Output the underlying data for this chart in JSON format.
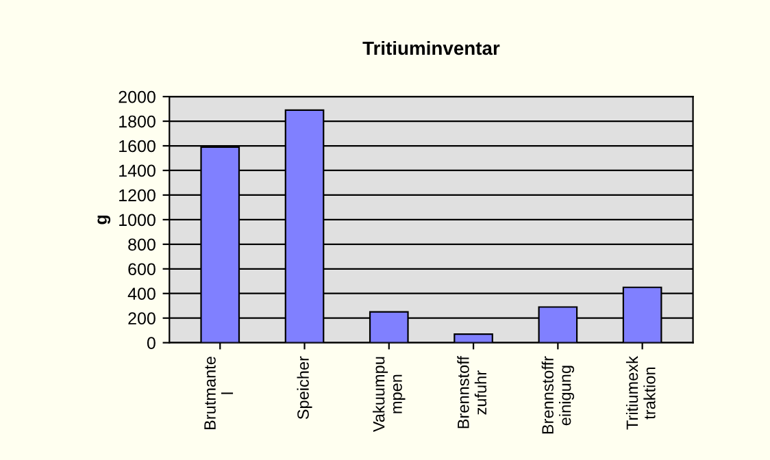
{
  "chart_data": {
    "type": "bar",
    "title": "Tritiuminventar",
    "ylabel": "g",
    "categories": [
      "Brutmante\nl",
      "Speicher",
      "Vakuumpu\nmpen",
      "Brennstoff\nzufuhr",
      "Brennstoffr\neinigung",
      "Tritiumexk\ntraktion"
    ],
    "values": [
      1590,
      1890,
      250,
      70,
      290,
      450
    ],
    "color": "#8080ff",
    "ylim": [
      0,
      2000
    ],
    "yticks": [
      0,
      200,
      400,
      600,
      800,
      1000,
      1200,
      1400,
      1600,
      1800,
      2000
    ],
    "grid": "y"
  }
}
